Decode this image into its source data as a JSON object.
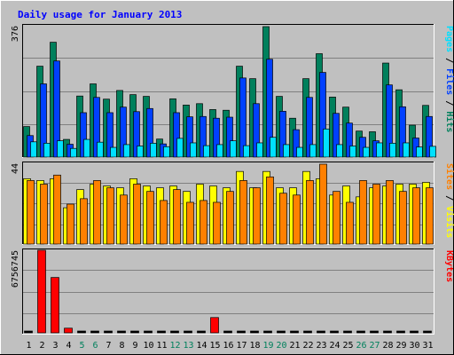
{
  "title": "Daily usage for January 2013",
  "colors": {
    "background": "#c0c0c0",
    "panel": "#c0c0c0",
    "title": "#0000ff",
    "grid": "#808080",
    "hits": "#00805c",
    "files": "#0040ff",
    "pages": "#00e0ff",
    "visits": "#ffff00",
    "sites": "#ff8000",
    "kbytes": "#ff0000",
    "weekend_day": "#00805c",
    "weekday": "#000000"
  },
  "chart_data": [
    {
      "type": "bar",
      "panel": "hits-files-pages",
      "ymax_label": "376",
      "ylim": [
        0,
        376
      ],
      "right_label": {
        "pages": "Pages",
        "files": "Files",
        "hits": "Hits",
        "sep": " / "
      },
      "categories": [
        "1",
        "2",
        "3",
        "4",
        "5",
        "6",
        "7",
        "8",
        "9",
        "10",
        "11",
        "12",
        "13",
        "14",
        "15",
        "16",
        "17",
        "18",
        "19",
        "20",
        "21",
        "22",
        "23",
        "24",
        "25",
        "26",
        "27",
        "28",
        "29",
        "30",
        "31"
      ],
      "weekend_days": [
        5,
        6,
        12,
        13,
        19,
        20,
        26,
        27
      ],
      "series": [
        {
          "name": "Hits",
          "values": [
            88,
            262,
            331,
            51,
            176,
            211,
            167,
            192,
            180,
            175,
            52,
            168,
            150,
            154,
            137,
            135,
            262,
            226,
            376,
            175,
            112,
            226,
            298,
            173,
            144,
            75,
            73,
            271,
            194,
            92,
            149
          ]
        },
        {
          "name": "Files",
          "values": [
            62,
            211,
            277,
            37,
            128,
            172,
            128,
            144,
            131,
            140,
            38,
            128,
            116,
            117,
            112,
            115,
            228,
            154,
            282,
            132,
            79,
            172,
            244,
            126,
            98,
            57,
            47,
            208,
            145,
            55,
            117
          ]
        },
        {
          "name": "Pages",
          "values": [
            44,
            40,
            47,
            25,
            51,
            43,
            28,
            36,
            32,
            40,
            30,
            54,
            41,
            33,
            36,
            47,
            33,
            41,
            57,
            36,
            28,
            36,
            81,
            36,
            32,
            28,
            41,
            40,
            41,
            29,
            31
          ]
        }
      ]
    },
    {
      "type": "bar",
      "panel": "visits-sites",
      "ymax_label": "44",
      "ylim": [
        0,
        44
      ],
      "right_label": {
        "sites": "Sites",
        "visits": "Visits",
        "sep": " / "
      },
      "categories": [
        "1",
        "2",
        "3",
        "4",
        "5",
        "6",
        "7",
        "8",
        "9",
        "10",
        "11",
        "12",
        "13",
        "14",
        "15",
        "16",
        "17",
        "18",
        "19",
        "20",
        "21",
        "22",
        "23",
        "24",
        "25",
        "26",
        "27",
        "28",
        "29",
        "30",
        "31"
      ],
      "series": [
        {
          "name": "Visits",
          "values": [
            36,
            35,
            36,
            20,
            30,
            33,
            32,
            31,
            36,
            32,
            31,
            32,
            29,
            33,
            32,
            31,
            40,
            31,
            40,
            31,
            31,
            40,
            36,
            27,
            32,
            26,
            31,
            32,
            33,
            33,
            34
          ]
        },
        {
          "name": "Sites",
          "values": [
            35,
            33,
            38,
            22,
            25,
            35,
            31,
            27,
            33,
            29,
            24,
            30,
            23,
            24,
            23,
            29,
            35,
            31,
            37,
            28,
            27,
            35,
            44,
            29,
            23,
            35,
            33,
            35,
            29,
            31,
            31
          ]
        }
      ]
    },
    {
      "type": "bar",
      "panel": "kbytes",
      "ymax_label": "6756745",
      "ylim": [
        0,
        6756745
      ],
      "right_label": {
        "kbytes": "KBytes"
      },
      "categories": [
        "1",
        "2",
        "3",
        "4",
        "5",
        "6",
        "7",
        "8",
        "9",
        "10",
        "11",
        "12",
        "13",
        "14",
        "15",
        "16",
        "17",
        "18",
        "19",
        "20",
        "21",
        "22",
        "23",
        "24",
        "25",
        "26",
        "27",
        "28",
        "29",
        "30",
        "31"
      ],
      "series": [
        {
          "name": "KBytes",
          "values": [
            0,
            6756745,
            4530000,
            380000,
            0,
            0,
            0,
            0,
            0,
            0,
            0,
            0,
            0,
            0,
            1250000,
            0,
            0,
            0,
            0,
            0,
            0,
            0,
            0,
            0,
            0,
            0,
            0,
            0,
            0,
            0,
            0
          ]
        }
      ]
    }
  ]
}
